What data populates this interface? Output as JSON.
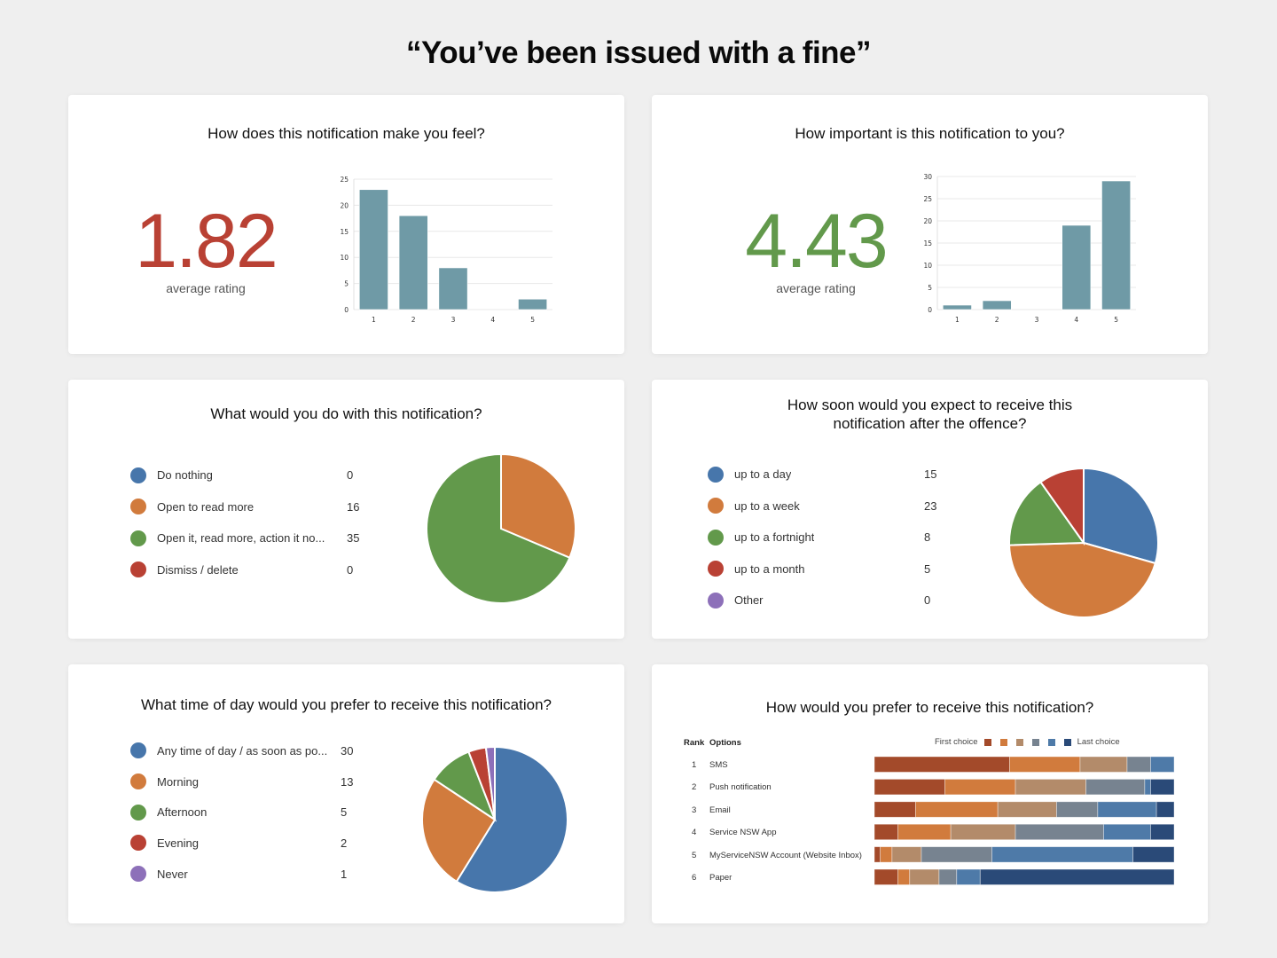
{
  "page": {
    "title": "“You’ve been issued with a fine”"
  },
  "colors": {
    "negative_rating": "#b94134",
    "positive_rating": "#62994b",
    "bar": "#6f9aa6",
    "grid": "#e8e8e8",
    "blue": "#4776ab",
    "orange": "#d17b3d",
    "green": "#62994b",
    "red": "#b94134",
    "purple": "#8d70b9"
  },
  "cards": {
    "feel": {
      "title": "How does this notification make you feel?",
      "average": "1.82",
      "average_caption": "average rating"
    },
    "importance": {
      "title": "How important is this notification to you?",
      "average": "4.43",
      "average_caption": "average rating"
    },
    "action": {
      "title": "What would you do with this notification?",
      "legend": [
        {
          "label": "Do nothing",
          "value": "0"
        },
        {
          "label": "Open to read more",
          "value": "16"
        },
        {
          "label": "Open it, read more, action it no...",
          "value": "35"
        },
        {
          "label": "Dismiss / delete",
          "value": "0"
        }
      ]
    },
    "timing": {
      "title_line1": "How soon would you expect to receive this",
      "title_line2": "notification after the offence?",
      "legend": [
        {
          "label": "up to a day",
          "value": "15"
        },
        {
          "label": "up to a week",
          "value": "23"
        },
        {
          "label": "up to a fortnight",
          "value": "8"
        },
        {
          "label": "up to a month",
          "value": "5"
        },
        {
          "label": "Other",
          "value": "0"
        }
      ]
    },
    "time_of_day": {
      "title": "What time of day would you prefer to receive this notification?",
      "legend": [
        {
          "label": "Any time of day / as soon as po...",
          "value": "30"
        },
        {
          "label": "Morning",
          "value": "13"
        },
        {
          "label": "Afternoon",
          "value": "5"
        },
        {
          "label": "Evening",
          "value": "2"
        },
        {
          "label": "Never",
          "value": "1"
        }
      ]
    },
    "channel": {
      "title": "How would you prefer to receive this notification?",
      "rank_header": "Rank",
      "options_header": "Options",
      "legend_first": "First choice",
      "legend_last": "Last choice",
      "rows": [
        {
          "rank": "1",
          "option": "SMS"
        },
        {
          "rank": "2",
          "option": "Push notification"
        },
        {
          "rank": "3",
          "option": "Email"
        },
        {
          "rank": "4",
          "option": "Service NSW App"
        },
        {
          "rank": "5",
          "option": "MyServiceNSW Account (Website Inbox)"
        },
        {
          "rank": "6",
          "option": "Paper"
        }
      ]
    }
  },
  "chart_data": [
    {
      "id": "feel",
      "type": "bar",
      "title": "How does this notification make you feel?",
      "categories": [
        "1",
        "2",
        "3",
        "4",
        "5"
      ],
      "values": [
        23,
        18,
        8,
        0,
        2
      ],
      "ylim": [
        0,
        25
      ],
      "yticks": [
        0,
        5,
        10,
        15,
        20,
        25
      ],
      "grid": true,
      "average": 1.82
    },
    {
      "id": "importance",
      "type": "bar",
      "title": "How important is this notification to you?",
      "categories": [
        "1",
        "2",
        "3",
        "4",
        "5"
      ],
      "values": [
        1,
        2,
        0,
        19,
        29
      ],
      "ylim": [
        0,
        30
      ],
      "yticks": [
        0,
        5,
        10,
        15,
        20,
        25,
        30
      ],
      "grid": true,
      "average": 4.43
    },
    {
      "id": "action",
      "type": "pie",
      "title": "What would you do with this notification?",
      "categories": [
        "Do nothing",
        "Open to read more",
        "Open it, read more, action it no...",
        "Dismiss / delete"
      ],
      "values": [
        0,
        16,
        35,
        0
      ],
      "colors": [
        "#4776ab",
        "#d17b3d",
        "#62994b",
        "#b94134"
      ]
    },
    {
      "id": "timing",
      "type": "pie",
      "title": "How soon would you expect to receive this notification after the offence?",
      "categories": [
        "up to a day",
        "up to a week",
        "up to a fortnight",
        "up to a month",
        "Other"
      ],
      "values": [
        15,
        23,
        8,
        5,
        0
      ],
      "colors": [
        "#4776ab",
        "#d17b3d",
        "#62994b",
        "#b94134",
        "#8d70b9"
      ]
    },
    {
      "id": "time_of_day",
      "type": "pie",
      "title": "What time of day would you prefer to receive this notification?",
      "categories": [
        "Any time of day / as soon as po...",
        "Morning",
        "Afternoon",
        "Evening",
        "Never"
      ],
      "values": [
        30,
        13,
        5,
        2,
        1
      ],
      "colors": [
        "#4776ab",
        "#d17b3d",
        "#62994b",
        "#b94134",
        "#8d70b9"
      ]
    },
    {
      "id": "channel",
      "type": "bar",
      "subtype": "stacked-horizontal-100",
      "title": "How would you prefer to receive this notification?",
      "categories": [
        "SMS",
        "Push notification",
        "Email",
        "Service NSW App",
        "MyServiceNSW Account (Website Inbox)",
        "Paper"
      ],
      "legend": [
        "First choice",
        "2",
        "3",
        "4",
        "5",
        "Last choice"
      ],
      "legend_placement": "top",
      "colors": [
        "#a34a2a",
        "#d17b3d",
        "#b38b6a",
        "#778390",
        "#4e7aa8",
        "#2a4a78"
      ],
      "series": [
        {
          "name": "Rank 1 (First choice)",
          "values": [
            23,
            12,
            7,
            4,
            1,
            4
          ]
        },
        {
          "name": "Rank 2",
          "values": [
            12,
            12,
            14,
            9,
            2,
            2
          ]
        },
        {
          "name": "Rank 3",
          "values": [
            8,
            12,
            10,
            11,
            5,
            5
          ]
        },
        {
          "name": "Rank 4",
          "values": [
            4,
            10,
            7,
            15,
            12,
            3
          ]
        },
        {
          "name": "Rank 5",
          "values": [
            4,
            1,
            10,
            8,
            24,
            4
          ]
        },
        {
          "name": "Rank 6 (Last choice)",
          "values": [
            0,
            4,
            3,
            4,
            7,
            33
          ]
        }
      ]
    }
  ]
}
